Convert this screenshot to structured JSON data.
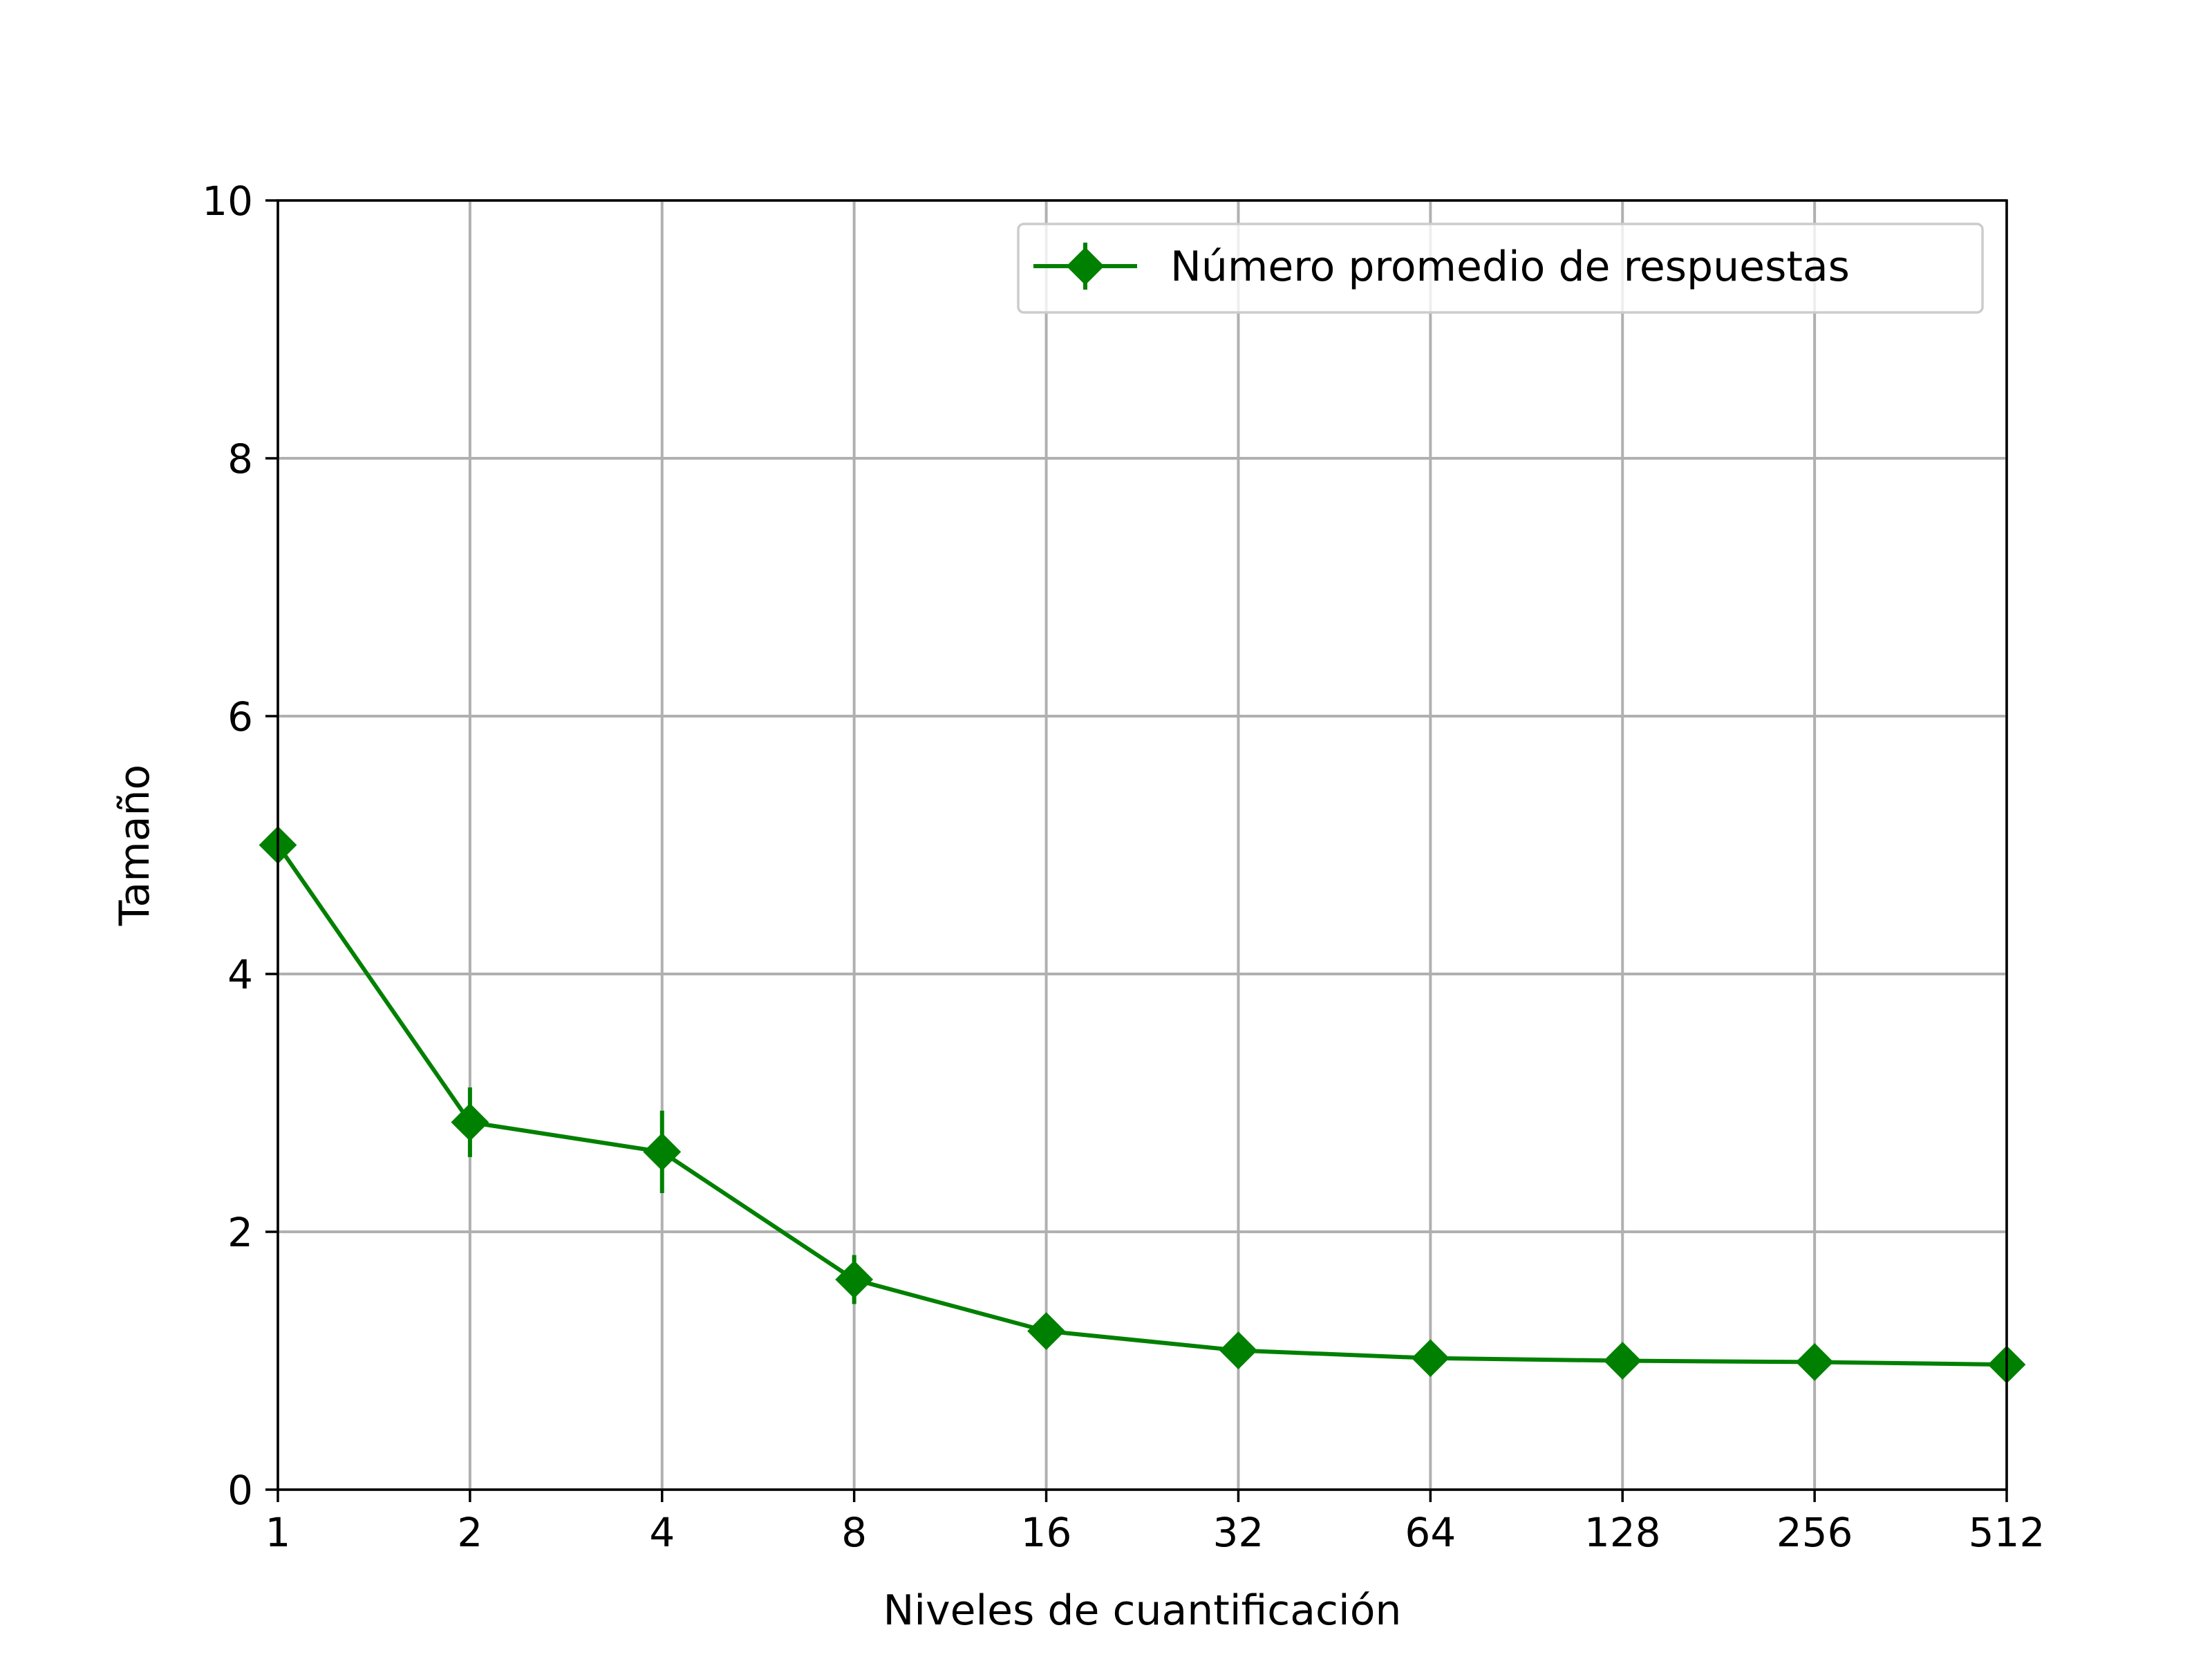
{
  "chart_data": {
    "type": "line",
    "title": "",
    "xlabel": "Niveles de cuantificación",
    "ylabel": "Tamaño",
    "x_scale": "log2",
    "x": [
      1,
      2,
      4,
      8,
      16,
      32,
      64,
      128,
      256,
      512
    ],
    "x_tick_labels": [
      "1",
      "2",
      "4",
      "8",
      "16",
      "32",
      "64",
      "128",
      "256",
      "512"
    ],
    "ylim": [
      0,
      10
    ],
    "xlim": [
      1,
      512
    ],
    "y_ticks": [
      0,
      2,
      4,
      6,
      8,
      10
    ],
    "y_tick_labels": [
      "0",
      "2",
      "4",
      "6",
      "8",
      "10"
    ],
    "grid": true,
    "legend_position": "top-right",
    "series": [
      {
        "name": "Número promedio de respuestas",
        "color": "#008000",
        "marker": "diamond",
        "values": [
          5.0,
          2.85,
          2.62,
          1.63,
          1.23,
          1.08,
          1.02,
          1.0,
          0.99,
          0.97
        ],
        "error": [
          0.0,
          0.27,
          0.32,
          0.19,
          0.05,
          0.03,
          0.02,
          0.01,
          0.01,
          0.01
        ]
      }
    ]
  }
}
